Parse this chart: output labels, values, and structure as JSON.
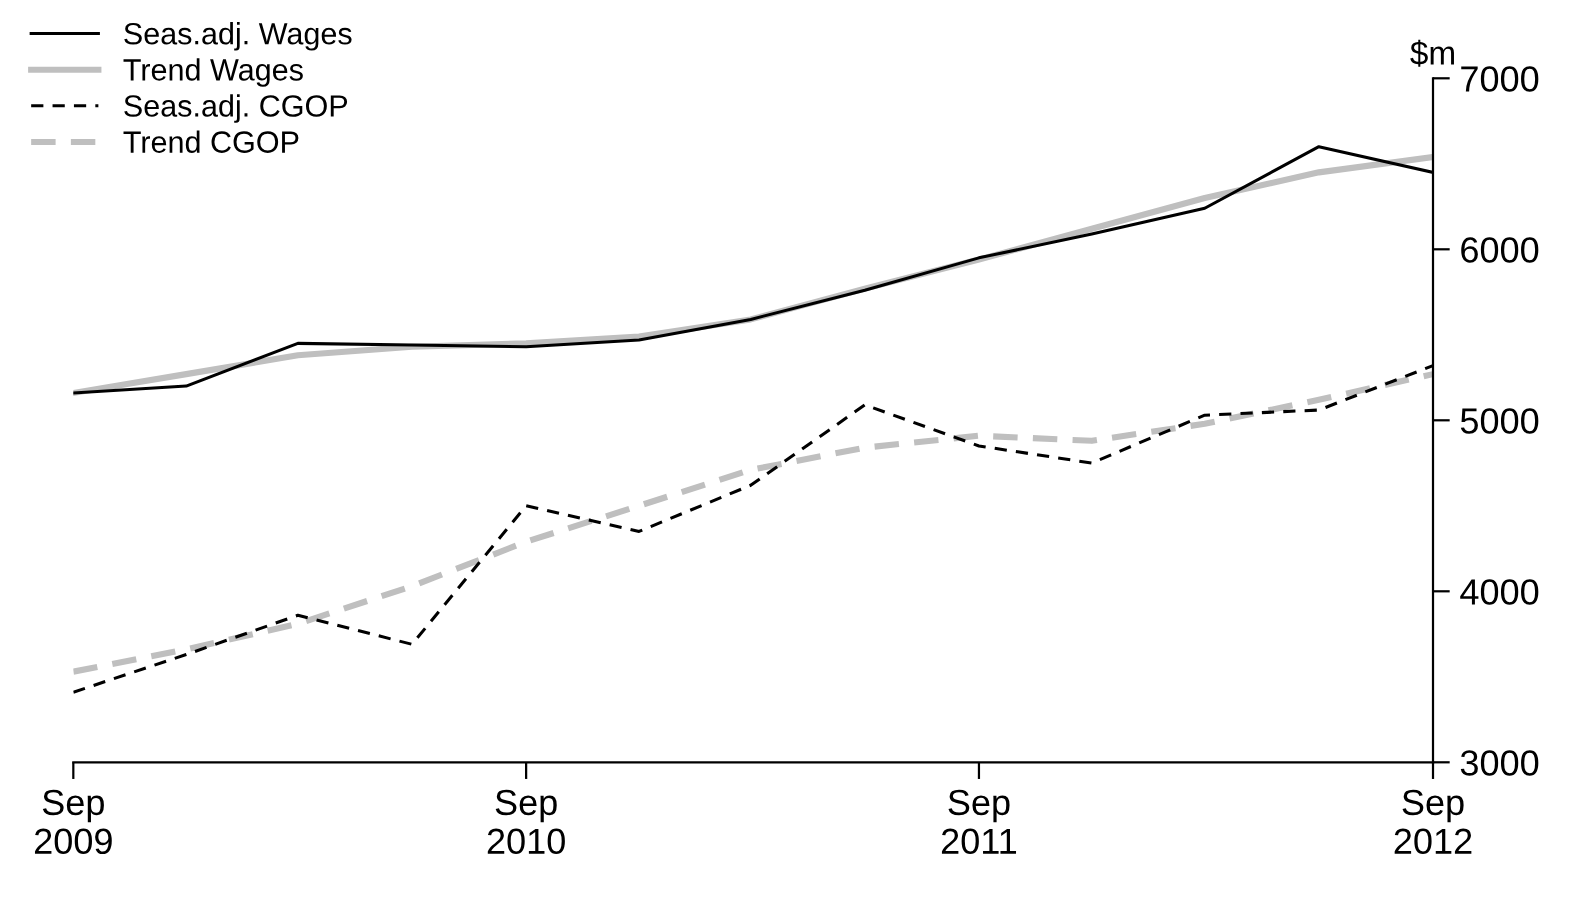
{
  "chart_data": {
    "type": "line",
    "ylabel": "$m",
    "x": [
      "2009-09",
      "2009-12",
      "2010-03",
      "2010-06",
      "2010-09",
      "2010-12",
      "2011-03",
      "2011-06",
      "2011-09",
      "2011-12",
      "2012-03",
      "2012-06",
      "2012-09"
    ],
    "series": [
      {
        "name": "Seas.adj. Wages",
        "color": "#000000",
        "line_style": "solid",
        "values": [
          5160,
          5200,
          5450,
          5440,
          5430,
          5470,
          5590,
          5760,
          5950,
          6090,
          6240,
          6600,
          6450
        ]
      },
      {
        "name": "Trend Wages",
        "color": "#bfbfbf",
        "line_style": "solid",
        "values": [
          5160,
          5270,
          5380,
          5430,
          5450,
          5490,
          5590,
          5770,
          5940,
          6120,
          6300,
          6450,
          6540
        ]
      },
      {
        "name": "Seas.adj. CGOP",
        "color": "#000000",
        "line_style": "dashed",
        "values": [
          3410,
          3630,
          3860,
          3690,
          4500,
          4350,
          4620,
          5090,
          4850,
          4750,
          5030,
          5060,
          5320
        ]
      },
      {
        "name": "Trend CGOP",
        "color": "#bfbfbf",
        "line_style": "dashed",
        "values": [
          3530,
          3660,
          3810,
          4030,
          4290,
          4500,
          4710,
          4840,
          4910,
          4880,
          4980,
          5120,
          5270
        ]
      }
    ],
    "xlim": [
      "2009-09",
      "2012-09"
    ],
    "xticks": [
      {
        "value": "2009-09",
        "label": "Sep\n2009"
      },
      {
        "value": "2010-09",
        "label": "Sep\n2010"
      },
      {
        "value": "2011-09",
        "label": "Sep\n2011"
      },
      {
        "value": "2012-09",
        "label": "Sep\n2012"
      }
    ],
    "ylim": [
      3000,
      7000
    ],
    "yticks": [
      3000,
      4000,
      5000,
      6000,
      7000
    ],
    "grid": false,
    "legend": "top left",
    "marker": "none"
  }
}
